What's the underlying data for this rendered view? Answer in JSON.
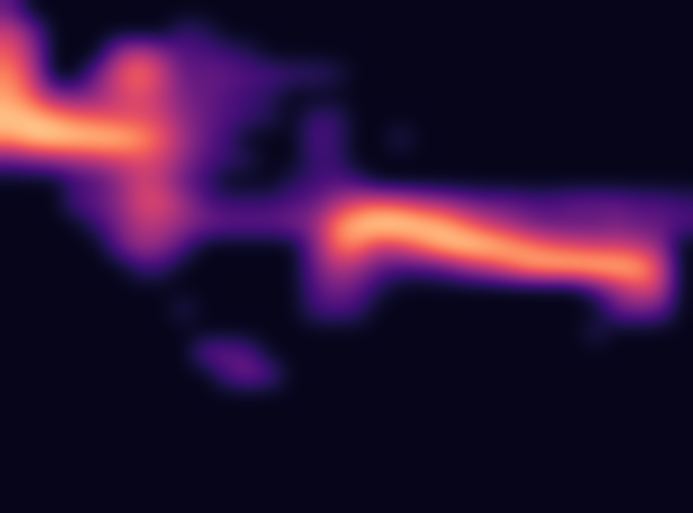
{
  "chart_data": {
    "type": "heatmap",
    "color": "magma",
    "tick_labels": false,
    "color_range": [
      0,
      1
    ],
    "cells": [
      [
        0.3,
        0.05,
        0.05,
        0.05,
        0.05,
        0.05,
        0.05,
        0.05,
        0.05,
        0.05,
        0.05,
        0.05,
        0.05,
        0.05,
        0.05,
        0.05,
        0.05,
        0.05,
        0.05,
        0.05,
        0.05,
        0.05,
        0.05,
        0.05,
        0.05,
        0.05,
        0.05,
        0.05,
        0.05,
        0.05,
        0.05,
        0.05
      ],
      [
        0.55,
        0.35,
        0.05,
        0.05,
        0.05,
        0.05,
        0.05,
        0.05,
        0.2,
        0.15,
        0.05,
        0.05,
        0.05,
        0.05,
        0.05,
        0.05,
        0.05,
        0.05,
        0.05,
        0.05,
        0.05,
        0.05,
        0.05,
        0.05,
        0.05,
        0.05,
        0.05,
        0.05,
        0.05,
        0.05,
        0.05,
        0.05
      ],
      [
        0.65,
        0.45,
        0.05,
        0.05,
        0.05,
        0.45,
        0.55,
        0.4,
        0.25,
        0.25,
        0.2,
        0.15,
        0.05,
        0.05,
        0.05,
        0.05,
        0.05,
        0.05,
        0.05,
        0.05,
        0.05,
        0.05,
        0.05,
        0.05,
        0.05,
        0.05,
        0.05,
        0.05,
        0.05,
        0.05,
        0.05,
        0.05
      ],
      [
        0.75,
        0.55,
        0.05,
        0.05,
        0.35,
        0.6,
        0.72,
        0.55,
        0.3,
        0.3,
        0.3,
        0.25,
        0.25,
        0.2,
        0.2,
        0.15,
        0.05,
        0.05,
        0.05,
        0.05,
        0.05,
        0.05,
        0.05,
        0.05,
        0.05,
        0.05,
        0.05,
        0.05,
        0.05,
        0.05,
        0.05,
        0.05
      ],
      [
        0.8,
        0.65,
        0.4,
        0.35,
        0.4,
        0.55,
        0.6,
        0.5,
        0.35,
        0.3,
        0.25,
        0.2,
        0.15,
        0.05,
        0.05,
        0.05,
        0.05,
        0.05,
        0.05,
        0.05,
        0.05,
        0.05,
        0.05,
        0.05,
        0.05,
        0.05,
        0.05,
        0.05,
        0.05,
        0.05,
        0.05,
        0.05
      ],
      [
        0.9,
        0.88,
        0.8,
        0.7,
        0.65,
        0.6,
        0.6,
        0.55,
        0.4,
        0.3,
        0.25,
        0.2,
        0.15,
        0.05,
        0.2,
        0.2,
        0.05,
        0.05,
        0.05,
        0.05,
        0.05,
        0.05,
        0.05,
        0.05,
        0.05,
        0.05,
        0.05,
        0.05,
        0.05,
        0.05,
        0.05,
        0.05
      ],
      [
        0.8,
        0.92,
        0.95,
        0.93,
        0.92,
        0.9,
        0.8,
        0.65,
        0.45,
        0.3,
        0.2,
        0.05,
        0.05,
        0.05,
        0.25,
        0.2,
        0.05,
        0.05,
        0.15,
        0.05,
        0.05,
        0.05,
        0.05,
        0.05,
        0.05,
        0.05,
        0.05,
        0.05,
        0.05,
        0.05,
        0.05,
        0.05
      ],
      [
        0.3,
        0.35,
        0.4,
        0.45,
        0.5,
        0.55,
        0.6,
        0.55,
        0.4,
        0.25,
        0.2,
        0.15,
        0.05,
        0.05,
        0.2,
        0.2,
        0.05,
        0.05,
        0.05,
        0.05,
        0.05,
        0.05,
        0.05,
        0.05,
        0.05,
        0.05,
        0.05,
        0.05,
        0.05,
        0.05,
        0.05,
        0.05
      ],
      [
        0.05,
        0.05,
        0.05,
        0.2,
        0.25,
        0.4,
        0.55,
        0.5,
        0.3,
        0.2,
        0.05,
        0.05,
        0.05,
        0.15,
        0.2,
        0.25,
        0.2,
        0.05,
        0.05,
        0.05,
        0.05,
        0.05,
        0.05,
        0.05,
        0.05,
        0.05,
        0.05,
        0.05,
        0.05,
        0.05,
        0.05,
        0.05
      ],
      [
        0.05,
        0.05,
        0.05,
        0.25,
        0.3,
        0.4,
        0.6,
        0.6,
        0.45,
        0.25,
        0.2,
        0.2,
        0.2,
        0.25,
        0.3,
        0.45,
        0.6,
        0.65,
        0.6,
        0.5,
        0.45,
        0.35,
        0.3,
        0.3,
        0.25,
        0.25,
        0.3,
        0.3,
        0.3,
        0.25,
        0.25,
        0.2
      ],
      [
        0.05,
        0.05,
        0.05,
        0.05,
        0.2,
        0.35,
        0.5,
        0.5,
        0.4,
        0.35,
        0.3,
        0.3,
        0.3,
        0.35,
        0.4,
        0.75,
        0.9,
        0.97,
        0.97,
        0.92,
        0.85,
        0.7,
        0.55,
        0.45,
        0.35,
        0.3,
        0.3,
        0.3,
        0.35,
        0.3,
        0.3,
        0.25
      ],
      [
        0.05,
        0.05,
        0.05,
        0.05,
        0.05,
        0.3,
        0.45,
        0.4,
        0.25,
        0.05,
        0.05,
        0.05,
        0.05,
        0.05,
        0.35,
        0.7,
        0.75,
        0.55,
        0.6,
        0.75,
        0.9,
        0.95,
        0.93,
        0.85,
        0.75,
        0.65,
        0.6,
        0.55,
        0.55,
        0.5,
        0.4,
        0.05
      ],
      [
        0.05,
        0.05,
        0.05,
        0.05,
        0.05,
        0.05,
        0.2,
        0.2,
        0.05,
        0.05,
        0.05,
        0.05,
        0.05,
        0.05,
        0.3,
        0.5,
        0.45,
        0.3,
        0.25,
        0.25,
        0.3,
        0.45,
        0.55,
        0.7,
        0.85,
        0.9,
        0.92,
        0.92,
        0.9,
        0.85,
        0.6,
        0.05
      ],
      [
        0.05,
        0.05,
        0.05,
        0.05,
        0.05,
        0.05,
        0.05,
        0.05,
        0.05,
        0.05,
        0.05,
        0.05,
        0.05,
        0.05,
        0.25,
        0.35,
        0.3,
        0.15,
        0.05,
        0.05,
        0.05,
        0.05,
        0.05,
        0.05,
        0.05,
        0.05,
        0.05,
        0.25,
        0.45,
        0.6,
        0.55,
        0.05
      ],
      [
        0.05,
        0.05,
        0.05,
        0.05,
        0.05,
        0.05,
        0.05,
        0.05,
        0.15,
        0.05,
        0.05,
        0.05,
        0.05,
        0.05,
        0.2,
        0.25,
        0.2,
        0.05,
        0.05,
        0.05,
        0.05,
        0.05,
        0.05,
        0.05,
        0.05,
        0.05,
        0.05,
        0.05,
        0.3,
        0.35,
        0.3,
        0.05
      ],
      [
        0.05,
        0.05,
        0.05,
        0.05,
        0.05,
        0.05,
        0.05,
        0.05,
        0.05,
        0.05,
        0.05,
        0.05,
        0.05,
        0.05,
        0.05,
        0.05,
        0.05,
        0.05,
        0.05,
        0.05,
        0.05,
        0.05,
        0.05,
        0.05,
        0.05,
        0.05,
        0.05,
        0.15,
        0.05,
        0.05,
        0.05,
        0.05
      ],
      [
        0.05,
        0.05,
        0.05,
        0.05,
        0.05,
        0.05,
        0.05,
        0.05,
        0.05,
        0.3,
        0.3,
        0.25,
        0.05,
        0.05,
        0.05,
        0.05,
        0.05,
        0.05,
        0.05,
        0.05,
        0.05,
        0.05,
        0.05,
        0.05,
        0.05,
        0.05,
        0.05,
        0.05,
        0.05,
        0.05,
        0.05,
        0.05
      ],
      [
        0.05,
        0.05,
        0.05,
        0.05,
        0.05,
        0.05,
        0.05,
        0.05,
        0.05,
        0.05,
        0.25,
        0.35,
        0.25,
        0.05,
        0.05,
        0.05,
        0.05,
        0.05,
        0.05,
        0.05,
        0.05,
        0.05,
        0.05,
        0.05,
        0.05,
        0.05,
        0.05,
        0.05,
        0.05,
        0.05,
        0.05,
        0.05
      ],
      [
        0.05,
        0.05,
        0.05,
        0.05,
        0.05,
        0.05,
        0.05,
        0.05,
        0.05,
        0.05,
        0.05,
        0.05,
        0.05,
        0.05,
        0.05,
        0.05,
        0.05,
        0.05,
        0.05,
        0.05,
        0.05,
        0.05,
        0.05,
        0.05,
        0.05,
        0.05,
        0.05,
        0.05,
        0.05,
        0.05,
        0.05,
        0.05
      ],
      [
        0.05,
        0.05,
        0.05,
        0.05,
        0.05,
        0.05,
        0.05,
        0.05,
        0.05,
        0.05,
        0.05,
        0.05,
        0.05,
        0.05,
        0.05,
        0.05,
        0.05,
        0.05,
        0.05,
        0.05,
        0.05,
        0.05,
        0.05,
        0.05,
        0.05,
        0.05,
        0.05,
        0.05,
        0.05,
        0.05,
        0.05,
        0.05
      ],
      [
        0.05,
        0.05,
        0.05,
        0.05,
        0.05,
        0.05,
        0.05,
        0.05,
        0.05,
        0.05,
        0.05,
        0.05,
        0.05,
        0.05,
        0.05,
        0.05,
        0.05,
        0.05,
        0.05,
        0.05,
        0.05,
        0.05,
        0.05,
        0.05,
        0.05,
        0.05,
        0.05,
        0.05,
        0.05,
        0.05,
        0.05,
        0.05
      ],
      [
        0.05,
        0.05,
        0.05,
        0.05,
        0.05,
        0.05,
        0.05,
        0.05,
        0.05,
        0.05,
        0.05,
        0.05,
        0.05,
        0.05,
        0.05,
        0.05,
        0.05,
        0.05,
        0.05,
        0.05,
        0.05,
        0.05,
        0.05,
        0.05,
        0.05,
        0.05,
        0.05,
        0.05,
        0.05,
        0.05,
        0.05,
        0.05
      ],
      [
        0.05,
        0.05,
        0.05,
        0.05,
        0.05,
        0.05,
        0.05,
        0.05,
        0.05,
        0.05,
        0.05,
        0.05,
        0.05,
        0.05,
        0.05,
        0.05,
        0.05,
        0.05,
        0.05,
        0.05,
        0.05,
        0.05,
        0.05,
        0.05,
        0.05,
        0.05,
        0.05,
        0.05,
        0.05,
        0.05,
        0.05,
        0.05
      ],
      [
        0.05,
        0.05,
        0.05,
        0.05,
        0.05,
        0.05,
        0.05,
        0.05,
        0.05,
        0.05,
        0.05,
        0.05,
        0.05,
        0.05,
        0.05,
        0.05,
        0.05,
        0.05,
        0.05,
        0.05,
        0.05,
        0.05,
        0.05,
        0.05,
        0.05,
        0.05,
        0.05,
        0.05,
        0.05,
        0.05,
        0.05,
        0.05
      ]
    ]
  }
}
